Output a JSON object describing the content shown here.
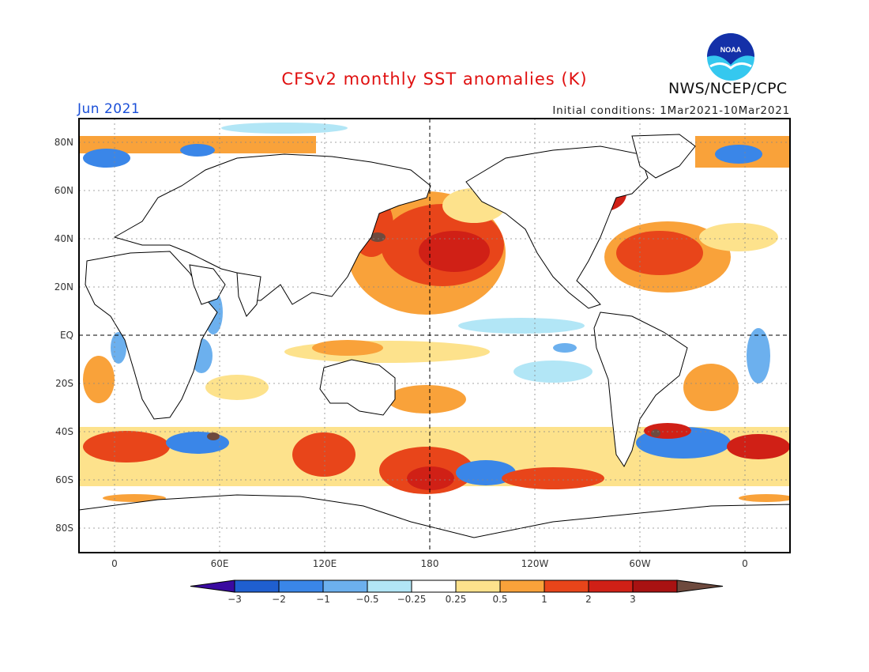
{
  "header": {
    "title": "CFSv2 monthly SST anomalies (K)",
    "month": "Jun 2021",
    "initial_conditions": "Initial conditions: 1Mar2021-10Mar2021",
    "agency": "NWS/NCEP/CPC",
    "logo_text": "NOAA"
  },
  "map": {
    "projection": "cylindrical",
    "lat_labels": [
      "80N",
      "60N",
      "40N",
      "20N",
      "EQ",
      "20S",
      "40S",
      "60S",
      "80S"
    ],
    "lon_labels": [
      "0",
      "60E",
      "120E",
      "180",
      "120W",
      "60W",
      "0"
    ],
    "reference_lines": [
      "EQ",
      "180"
    ]
  },
  "colorbar": {
    "labels": [
      "−3",
      "−2",
      "−1",
      "−0.5",
      "−0.25",
      "0.25",
      "0.5",
      "1",
      "2",
      "3"
    ],
    "colors": [
      "#3a0aa0",
      "#1f5fd0",
      "#3a86e8",
      "#6cb0ee",
      "#b2e6f6",
      "#ffffff",
      "#fde28c",
      "#f9a23a",
      "#e8451a",
      "#d02016",
      "#a81212",
      "#6e4a3e"
    ]
  }
}
